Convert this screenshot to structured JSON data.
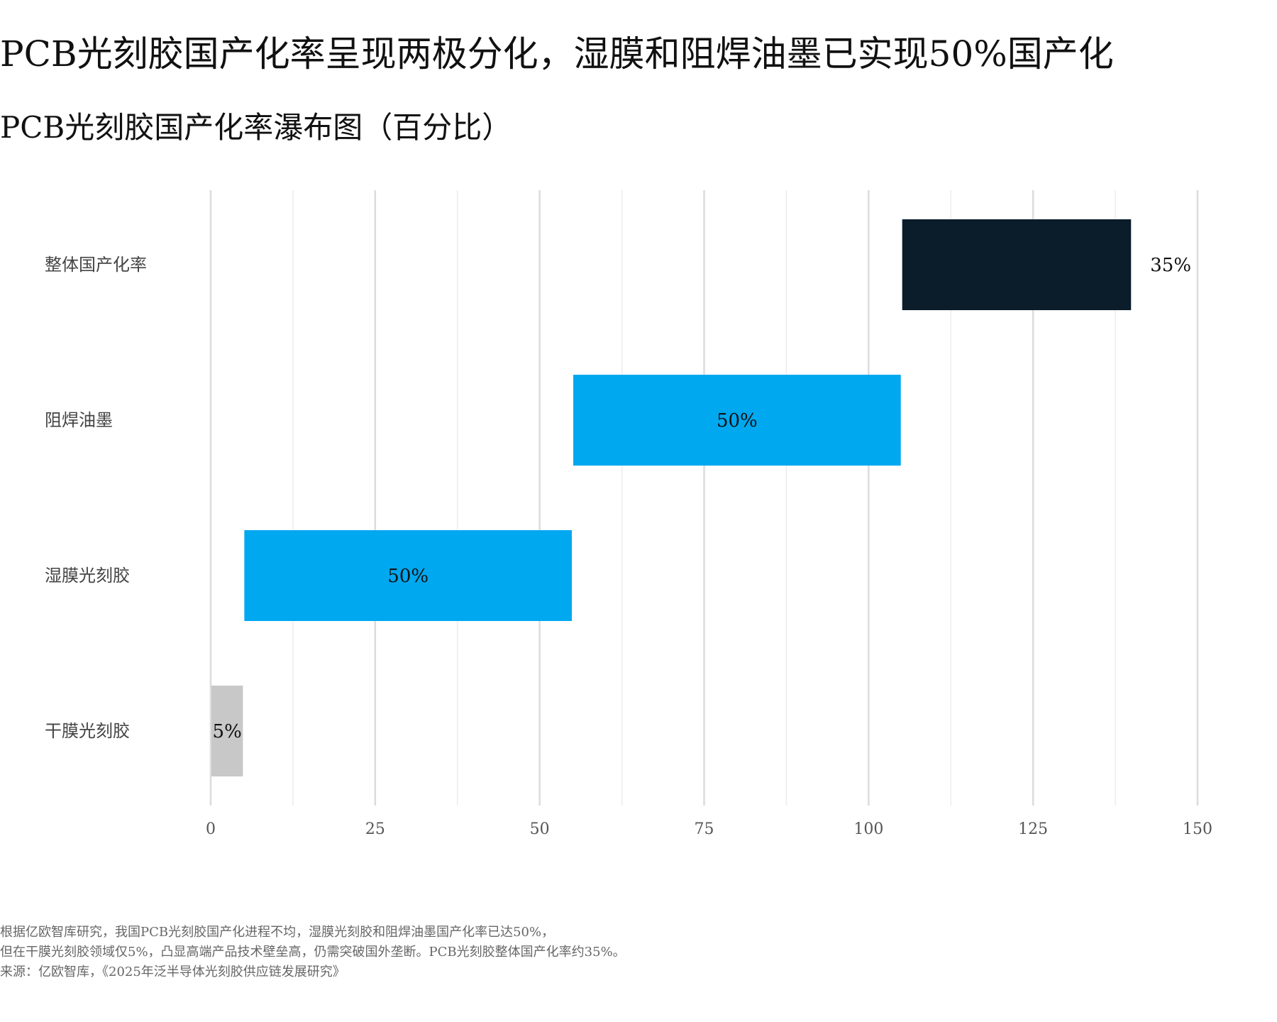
{
  "header": {
    "headline": "PCB光刻胶国产化率呈现两极分化，湿膜和阻焊油墨已实现50%国产化",
    "subtitle": "PCB光刻胶国产化率瀑布图（百分比）"
  },
  "chart_data": {
    "type": "bar",
    "orientation": "horizontal",
    "style": "waterfall",
    "categories": [
      "干膜光刻胶",
      "湿膜光刻胶",
      "阻焊油墨",
      "整体国产化率"
    ],
    "values": [
      5,
      50,
      50,
      35
    ],
    "starts": [
      0,
      5,
      55,
      105
    ],
    "labels": [
      "5%",
      "50%",
      "50%",
      "35%"
    ],
    "colors": [
      "#c8c8c8",
      "#00a8f0",
      "#00a8f0",
      "#0b1c2b"
    ],
    "label_positions": [
      "inside",
      "inside",
      "inside",
      "outside"
    ],
    "xlim": [
      0,
      150
    ],
    "xticks": [
      0,
      25,
      50,
      75,
      100,
      125,
      150
    ],
    "xtick_labels": [
      "0",
      "25",
      "50",
      "75",
      "100",
      "125",
      "150"
    ],
    "grid": "vertical",
    "xlabel": "",
    "ylabel": ""
  },
  "footnote": {
    "line1": "根据亿欧智库研究，我国PCB光刻胶国产化进程不均，湿膜光刻胶和阻焊油墨国产化率已达50%，",
    "line2": "但在干膜光刻胶领域仅5%，凸显高端产品技术壁垒高，仍需突破国外垄断。PCB光刻胶整体国产化率约35%。",
    "source": "来源：亿欧智库，《2025年泛半导体光刻胶供应链发展研究》"
  }
}
